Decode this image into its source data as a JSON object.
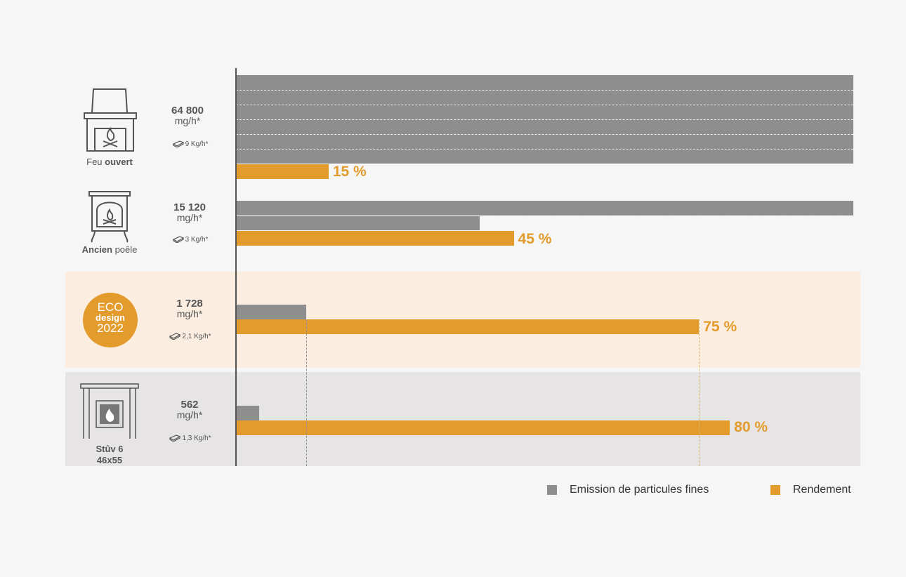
{
  "chart_data": {
    "type": "bar",
    "orientation": "horizontal",
    "categories": [
      "Feu ouvert",
      "Ancien poêle",
      "ECO design 2022",
      "Stûv 6 46x55"
    ],
    "series": [
      {
        "name": "Emission de particules fines",
        "unit": "mg/h*",
        "values": [
          64800,
          15120,
          1728,
          562
        ],
        "color": "#8e8e8e"
      },
      {
        "name": "Rendement",
        "unit": "%",
        "values": [
          15,
          45,
          75,
          80
        ],
        "color": "#e39b2c"
      }
    ],
    "category_rows": [
      {
        "label_regular": "Feu ",
        "label_bold": "ouvert",
        "emission_value": "64 800",
        "emission_unit": "mg/h*",
        "wood": "9 Kg/h*",
        "efficiency_label": "15 %",
        "icon": "open-fireplace-icon"
      },
      {
        "label_bold": "Ancien",
        "label_regular": " poêle",
        "emission_value": "15 120",
        "emission_unit": "mg/h*",
        "wood": "3 Kg/h*",
        "efficiency_label": "45 %",
        "icon": "old-stove-icon"
      },
      {
        "badge_line1": "ECO",
        "badge_line2": "design",
        "badge_line3": "2022",
        "emission_value": "1 728",
        "emission_unit": "mg/h*",
        "wood": "2,1 Kg/h*",
        "efficiency_label": "75 %",
        "icon": "eco-design-badge"
      },
      {
        "label_line1": "Stûv 6",
        "label_line2": "46x55",
        "emission_value": "562",
        "emission_unit": "mg/h*",
        "wood": "1,3 Kg/h*",
        "efficiency_label": "80 %",
        "icon": "stuv-insert-icon"
      }
    ],
    "legend": {
      "position": "bottom-right",
      "items": [
        {
          "label": "Emission de particules fines",
          "color": "#8e8e8e"
        },
        {
          "label": "Rendement",
          "color": "#e39b2c"
        }
      ]
    },
    "grid": false
  }
}
